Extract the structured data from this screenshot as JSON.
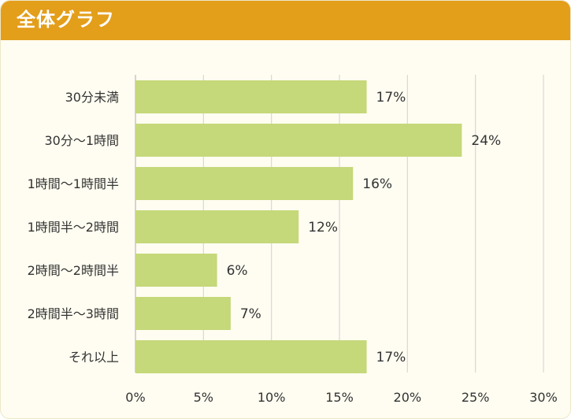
{
  "header": {
    "title": "全体グラフ"
  },
  "colors": {
    "header_bg": "#e39e1a",
    "bar": "#c5d87a",
    "grid": "#d8d8d8",
    "card_bg": "#fffdf1"
  },
  "chart_data": {
    "type": "bar",
    "orientation": "horizontal",
    "title": "",
    "xlabel": "",
    "ylabel": "",
    "categories": [
      "30分未満",
      "30分～1時間",
      "1時間～1時間半",
      "1時間半～2時間",
      "2時間～2時間半",
      "2時間半～3時間",
      "それ以上"
    ],
    "values": [
      17,
      24,
      16,
      12,
      6,
      7,
      17
    ],
    "value_labels": [
      "17%",
      "24%",
      "16%",
      "12%",
      "6%",
      "7%",
      "17%"
    ],
    "xlim": [
      0,
      30
    ],
    "ticks": [
      0,
      5,
      10,
      15,
      20,
      25,
      30
    ],
    "tick_labels": [
      "0%",
      "5%",
      "10%",
      "15%",
      "20%",
      "25%",
      "30%"
    ],
    "grid": true,
    "legend": "none"
  }
}
